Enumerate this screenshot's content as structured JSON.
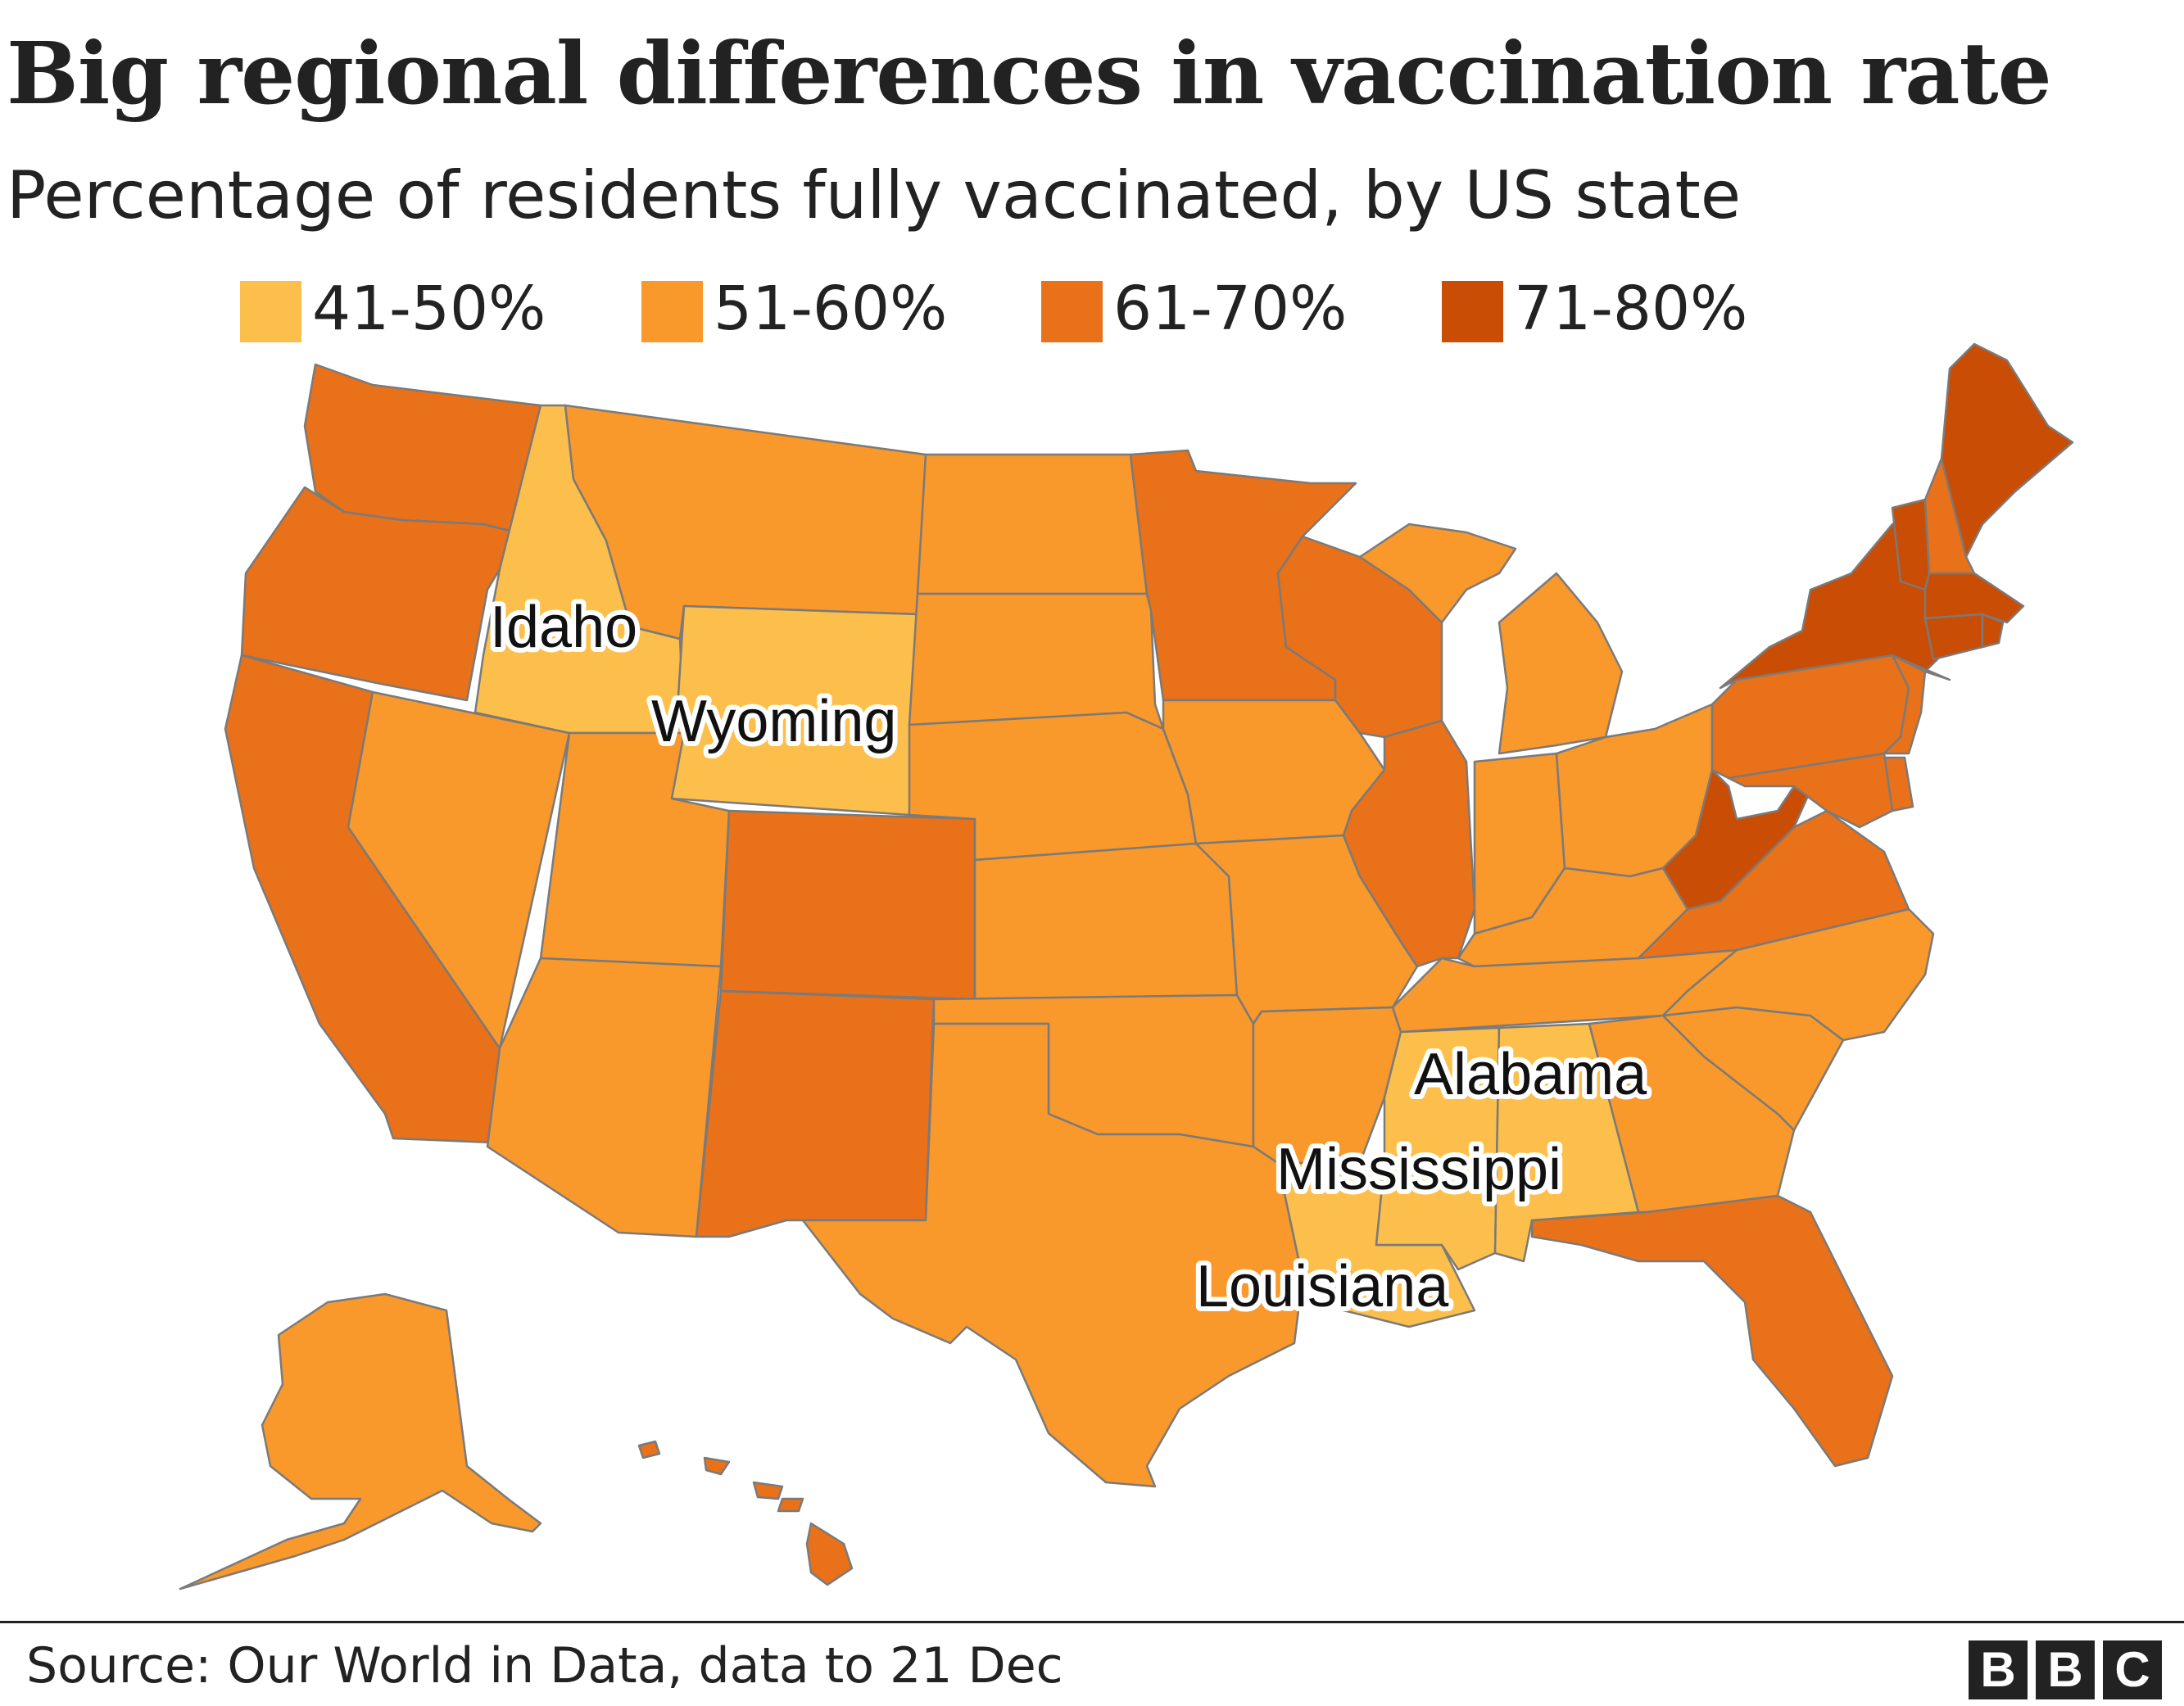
{
  "title": "Big regional differences in vaccination rate",
  "subtitle": "Percentage of residents fully vaccinated, by US state",
  "legend": [
    {
      "label": "41-50%",
      "color": "#fdbf4c"
    },
    {
      "label": "51-60%",
      "color": "#f9982b"
    },
    {
      "label": "61-70%",
      "color": "#e8711a"
    },
    {
      "label": "71-80%",
      "color": "#c94d05"
    }
  ],
  "callouts": {
    "idaho": "Idaho",
    "wyoming": "Wyoming",
    "alabama": "Alabama",
    "mississippi": "Mississippi",
    "louisiana": "Louisiana"
  },
  "state_bands": {
    "WA": "61-70%",
    "OR": "61-70%",
    "CA": "61-70%",
    "NV": "51-60%",
    "ID": "41-50%",
    "MT": "51-60%",
    "WY": "41-50%",
    "UT": "51-60%",
    "AZ": "51-60%",
    "CO": "61-70%",
    "NM": "61-70%",
    "ND": "51-60%",
    "SD": "51-60%",
    "NE": "51-60%",
    "KS": "51-60%",
    "OK": "51-60%",
    "TX": "51-60%",
    "MN": "61-70%",
    "IA": "51-60%",
    "MO": "51-60%",
    "AR": "51-60%",
    "LA": "41-50%",
    "WI": "61-70%",
    "IL": "61-70%",
    "MI": "51-60%",
    "IN": "51-60%",
    "OH": "51-60%",
    "KY": "51-60%",
    "TN": "51-60%",
    "MS": "41-50%",
    "AL": "41-50%",
    "GA": "51-60%",
    "FL": "61-70%",
    "SC": "51-60%",
    "NC": "51-60%",
    "VA": "61-70%",
    "WV": "71-80%",
    "PA": "61-70%",
    "NY": "71-80%",
    "VT": "71-80%",
    "NH": "61-70%",
    "ME": "71-80%",
    "MA": "71-80%",
    "RI": "71-80%",
    "CT": "71-80%",
    "NJ": "61-70%",
    "DE": "61-70%",
    "MD": "61-70%",
    "AK": "51-60%",
    "HI": "61-70%"
  },
  "source": "Source: Our World in Data, data to 21 Dec",
  "logo": [
    "B",
    "B",
    "C"
  ]
}
